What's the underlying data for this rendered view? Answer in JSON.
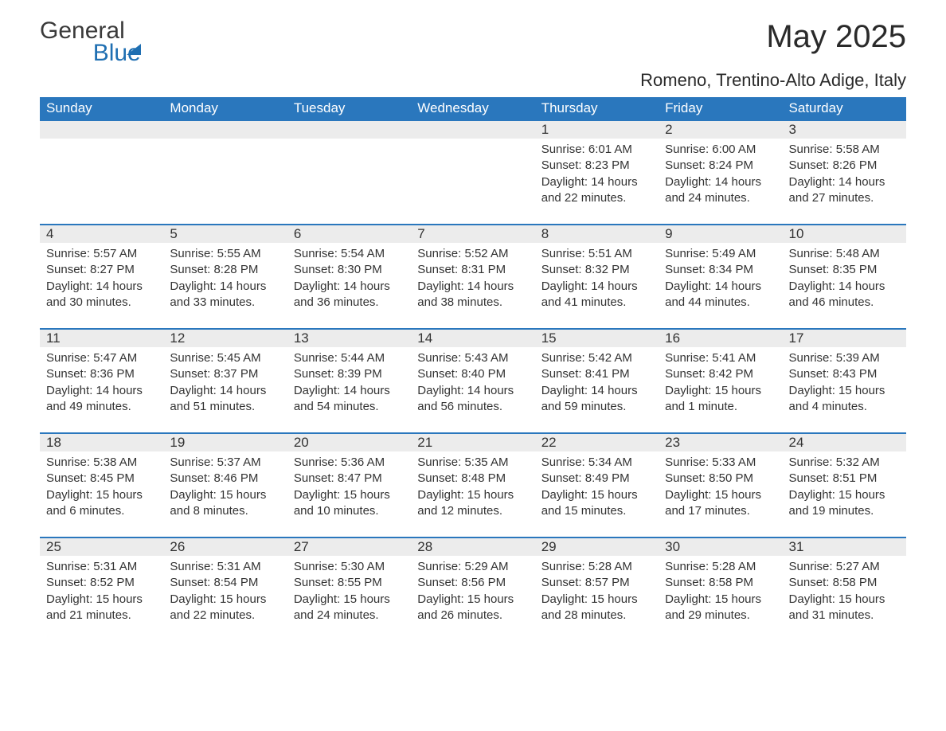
{
  "brand": {
    "name_general": "General",
    "name_blue": "Blue",
    "accent_color": "#1f6fb2"
  },
  "title": "May 2025",
  "location": "Romeno, Trentino-Alto Adige, Italy",
  "colors": {
    "header_bg": "#2a77bd",
    "header_text": "#ffffff",
    "daynum_bg": "#ececec",
    "row_divider": "#2a77bd",
    "text": "#333333",
    "page_bg": "#ffffff"
  },
  "typography": {
    "title_fontsize": 40,
    "location_fontsize": 22,
    "header_fontsize": 17,
    "daynum_fontsize": 17,
    "body_fontsize": 15,
    "font_family": "Arial"
  },
  "layout": {
    "columns": 7,
    "rows": 5
  },
  "weekday_headers": [
    "Sunday",
    "Monday",
    "Tuesday",
    "Wednesday",
    "Thursday",
    "Friday",
    "Saturday"
  ],
  "weeks": [
    [
      {
        "day": "",
        "sunrise": "",
        "sunset": "",
        "daylight": ""
      },
      {
        "day": "",
        "sunrise": "",
        "sunset": "",
        "daylight": ""
      },
      {
        "day": "",
        "sunrise": "",
        "sunset": "",
        "daylight": ""
      },
      {
        "day": "",
        "sunrise": "",
        "sunset": "",
        "daylight": ""
      },
      {
        "day": "1",
        "sunrise": "Sunrise: 6:01 AM",
        "sunset": "Sunset: 8:23 PM",
        "daylight": "Daylight: 14 hours and 22 minutes."
      },
      {
        "day": "2",
        "sunrise": "Sunrise: 6:00 AM",
        "sunset": "Sunset: 8:24 PM",
        "daylight": "Daylight: 14 hours and 24 minutes."
      },
      {
        "day": "3",
        "sunrise": "Sunrise: 5:58 AM",
        "sunset": "Sunset: 8:26 PM",
        "daylight": "Daylight: 14 hours and 27 minutes."
      }
    ],
    [
      {
        "day": "4",
        "sunrise": "Sunrise: 5:57 AM",
        "sunset": "Sunset: 8:27 PM",
        "daylight": "Daylight: 14 hours and 30 minutes."
      },
      {
        "day": "5",
        "sunrise": "Sunrise: 5:55 AM",
        "sunset": "Sunset: 8:28 PM",
        "daylight": "Daylight: 14 hours and 33 minutes."
      },
      {
        "day": "6",
        "sunrise": "Sunrise: 5:54 AM",
        "sunset": "Sunset: 8:30 PM",
        "daylight": "Daylight: 14 hours and 36 minutes."
      },
      {
        "day": "7",
        "sunrise": "Sunrise: 5:52 AM",
        "sunset": "Sunset: 8:31 PM",
        "daylight": "Daylight: 14 hours and 38 minutes."
      },
      {
        "day": "8",
        "sunrise": "Sunrise: 5:51 AM",
        "sunset": "Sunset: 8:32 PM",
        "daylight": "Daylight: 14 hours and 41 minutes."
      },
      {
        "day": "9",
        "sunrise": "Sunrise: 5:49 AM",
        "sunset": "Sunset: 8:34 PM",
        "daylight": "Daylight: 14 hours and 44 minutes."
      },
      {
        "day": "10",
        "sunrise": "Sunrise: 5:48 AM",
        "sunset": "Sunset: 8:35 PM",
        "daylight": "Daylight: 14 hours and 46 minutes."
      }
    ],
    [
      {
        "day": "11",
        "sunrise": "Sunrise: 5:47 AM",
        "sunset": "Sunset: 8:36 PM",
        "daylight": "Daylight: 14 hours and 49 minutes."
      },
      {
        "day": "12",
        "sunrise": "Sunrise: 5:45 AM",
        "sunset": "Sunset: 8:37 PM",
        "daylight": "Daylight: 14 hours and 51 minutes."
      },
      {
        "day": "13",
        "sunrise": "Sunrise: 5:44 AM",
        "sunset": "Sunset: 8:39 PM",
        "daylight": "Daylight: 14 hours and 54 minutes."
      },
      {
        "day": "14",
        "sunrise": "Sunrise: 5:43 AM",
        "sunset": "Sunset: 8:40 PM",
        "daylight": "Daylight: 14 hours and 56 minutes."
      },
      {
        "day": "15",
        "sunrise": "Sunrise: 5:42 AM",
        "sunset": "Sunset: 8:41 PM",
        "daylight": "Daylight: 14 hours and 59 minutes."
      },
      {
        "day": "16",
        "sunrise": "Sunrise: 5:41 AM",
        "sunset": "Sunset: 8:42 PM",
        "daylight": "Daylight: 15 hours and 1 minute."
      },
      {
        "day": "17",
        "sunrise": "Sunrise: 5:39 AM",
        "sunset": "Sunset: 8:43 PM",
        "daylight": "Daylight: 15 hours and 4 minutes."
      }
    ],
    [
      {
        "day": "18",
        "sunrise": "Sunrise: 5:38 AM",
        "sunset": "Sunset: 8:45 PM",
        "daylight": "Daylight: 15 hours and 6 minutes."
      },
      {
        "day": "19",
        "sunrise": "Sunrise: 5:37 AM",
        "sunset": "Sunset: 8:46 PM",
        "daylight": "Daylight: 15 hours and 8 minutes."
      },
      {
        "day": "20",
        "sunrise": "Sunrise: 5:36 AM",
        "sunset": "Sunset: 8:47 PM",
        "daylight": "Daylight: 15 hours and 10 minutes."
      },
      {
        "day": "21",
        "sunrise": "Sunrise: 5:35 AM",
        "sunset": "Sunset: 8:48 PM",
        "daylight": "Daylight: 15 hours and 12 minutes."
      },
      {
        "day": "22",
        "sunrise": "Sunrise: 5:34 AM",
        "sunset": "Sunset: 8:49 PM",
        "daylight": "Daylight: 15 hours and 15 minutes."
      },
      {
        "day": "23",
        "sunrise": "Sunrise: 5:33 AM",
        "sunset": "Sunset: 8:50 PM",
        "daylight": "Daylight: 15 hours and 17 minutes."
      },
      {
        "day": "24",
        "sunrise": "Sunrise: 5:32 AM",
        "sunset": "Sunset: 8:51 PM",
        "daylight": "Daylight: 15 hours and 19 minutes."
      }
    ],
    [
      {
        "day": "25",
        "sunrise": "Sunrise: 5:31 AM",
        "sunset": "Sunset: 8:52 PM",
        "daylight": "Daylight: 15 hours and 21 minutes."
      },
      {
        "day": "26",
        "sunrise": "Sunrise: 5:31 AM",
        "sunset": "Sunset: 8:54 PM",
        "daylight": "Daylight: 15 hours and 22 minutes."
      },
      {
        "day": "27",
        "sunrise": "Sunrise: 5:30 AM",
        "sunset": "Sunset: 8:55 PM",
        "daylight": "Daylight: 15 hours and 24 minutes."
      },
      {
        "day": "28",
        "sunrise": "Sunrise: 5:29 AM",
        "sunset": "Sunset: 8:56 PM",
        "daylight": "Daylight: 15 hours and 26 minutes."
      },
      {
        "day": "29",
        "sunrise": "Sunrise: 5:28 AM",
        "sunset": "Sunset: 8:57 PM",
        "daylight": "Daylight: 15 hours and 28 minutes."
      },
      {
        "day": "30",
        "sunrise": "Sunrise: 5:28 AM",
        "sunset": "Sunset: 8:58 PM",
        "daylight": "Daylight: 15 hours and 29 minutes."
      },
      {
        "day": "31",
        "sunrise": "Sunrise: 5:27 AM",
        "sunset": "Sunset: 8:58 PM",
        "daylight": "Daylight: 15 hours and 31 minutes."
      }
    ]
  ]
}
